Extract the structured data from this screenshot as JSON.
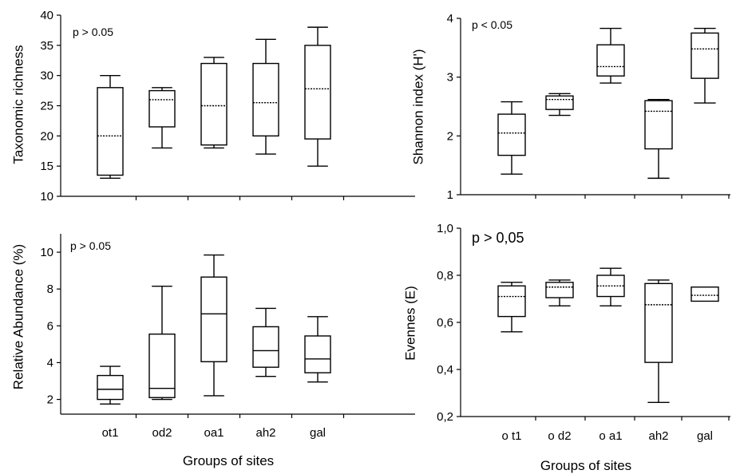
{
  "chart_data": [
    {
      "type": "box",
      "ylabel": "Taxonomic richness",
      "xlabel": "",
      "annotation": "p > 0.05",
      "ylim": [
        10,
        40
      ],
      "yticks": [
        10,
        15,
        20,
        25,
        30,
        35,
        40
      ],
      "ytick_labels": [
        "10",
        "15",
        "20",
        "25",
        "30",
        "35",
        "40"
      ],
      "categories": [
        "ot1",
        "od2",
        "oa1",
        "ah2",
        "gal"
      ],
      "show_xtick_labels": false,
      "median_style": "dotted",
      "boxes": [
        {
          "min": 13,
          "q1": 13.5,
          "median": 20,
          "q3": 28,
          "max": 30
        },
        {
          "min": 18,
          "q1": 21.5,
          "median": 26,
          "q3": 27.5,
          "max": 28
        },
        {
          "min": 18,
          "q1": 18.5,
          "median": 25,
          "q3": 32,
          "max": 33
        },
        {
          "min": 17,
          "q1": 20,
          "median": 25.5,
          "q3": 32,
          "max": 36
        },
        {
          "min": 15,
          "q1": 19.5,
          "median": 27.8,
          "q3": 35,
          "max": 38
        }
      ]
    },
    {
      "type": "box",
      "ylabel": "Shannon index  (H')",
      "xlabel": "",
      "annotation": "p < 0.05",
      "ylim": [
        1,
        4
      ],
      "yticks": [
        1,
        2,
        3,
        4
      ],
      "ytick_labels": [
        "1",
        "2",
        "3",
        "4"
      ],
      "categories": [
        "ot1",
        "od2",
        "oa1",
        "ah2",
        "gal"
      ],
      "show_xtick_labels": false,
      "median_style": "dotted",
      "boxes": [
        {
          "min": 1.35,
          "q1": 1.67,
          "median": 2.05,
          "q3": 2.37,
          "max": 2.58
        },
        {
          "min": 2.35,
          "q1": 2.45,
          "median": 2.62,
          "q3": 2.68,
          "max": 2.72
        },
        {
          "min": 2.9,
          "q1": 3.02,
          "median": 3.18,
          "q3": 3.55,
          "max": 3.83
        },
        {
          "min": 1.28,
          "q1": 1.78,
          "median": 2.42,
          "q3": 2.6,
          "max": 2.62
        },
        {
          "min": 2.56,
          "q1": 2.98,
          "median": 3.48,
          "q3": 3.75,
          "max": 3.83
        }
      ]
    },
    {
      "type": "box",
      "ylabel": "Relative Abundance (%)",
      "xlabel": "Groups of sites",
      "annotation": "p > 0.05",
      "ylim": [
        1.2,
        11
      ],
      "yticks": [
        2,
        4,
        6,
        8,
        10
      ],
      "ytick_labels": [
        "2",
        "4",
        "6",
        "8",
        "10"
      ],
      "categories": [
        "ot1",
        "od2",
        "oa1",
        "ah2",
        "gal"
      ],
      "show_xtick_labels": true,
      "median_style": "solid",
      "boxes": [
        {
          "min": 1.75,
          "q1": 2.0,
          "median": 2.55,
          "q3": 3.3,
          "max": 3.8
        },
        {
          "min": 2.0,
          "q1": 2.1,
          "median": 2.6,
          "q3": 5.55,
          "max": 8.15
        },
        {
          "min": 2.2,
          "q1": 4.05,
          "median": 6.65,
          "q3": 8.65,
          "max": 9.85
        },
        {
          "min": 3.25,
          "q1": 3.75,
          "median": 4.65,
          "q3": 5.95,
          "max": 6.95
        },
        {
          "min": 2.95,
          "q1": 3.45,
          "median": 4.2,
          "q3": 5.45,
          "max": 6.5
        }
      ]
    },
    {
      "type": "box",
      "ylabel": "Evennes (E)",
      "xlabel": "Groups of sites",
      "annotation": "p > 0,05",
      "ylim": [
        0.2,
        1.0
      ],
      "yticks": [
        0.2,
        0.4,
        0.6,
        0.8,
        1.0
      ],
      "ytick_labels": [
        "0,2",
        "0,4",
        "0,6",
        "0,8",
        "1,0"
      ],
      "categories": [
        "o t1",
        "o d2",
        "o a1",
        "ah2",
        "gal"
      ],
      "show_xtick_labels": true,
      "median_style": "dotted",
      "boxes": [
        {
          "min": 0.56,
          "q1": 0.625,
          "median": 0.71,
          "q3": 0.755,
          "max": 0.77
        },
        {
          "min": 0.67,
          "q1": 0.705,
          "median": 0.75,
          "q3": 0.77,
          "max": 0.78
        },
        {
          "min": 0.67,
          "q1": 0.71,
          "median": 0.755,
          "q3": 0.8,
          "max": 0.83
        },
        {
          "min": 0.26,
          "q1": 0.43,
          "median": 0.675,
          "q3": 0.765,
          "max": 0.78
        },
        {
          "min": null,
          "q1": 0.69,
          "median": 0.715,
          "q3": 0.75,
          "max": null
        }
      ]
    }
  ]
}
